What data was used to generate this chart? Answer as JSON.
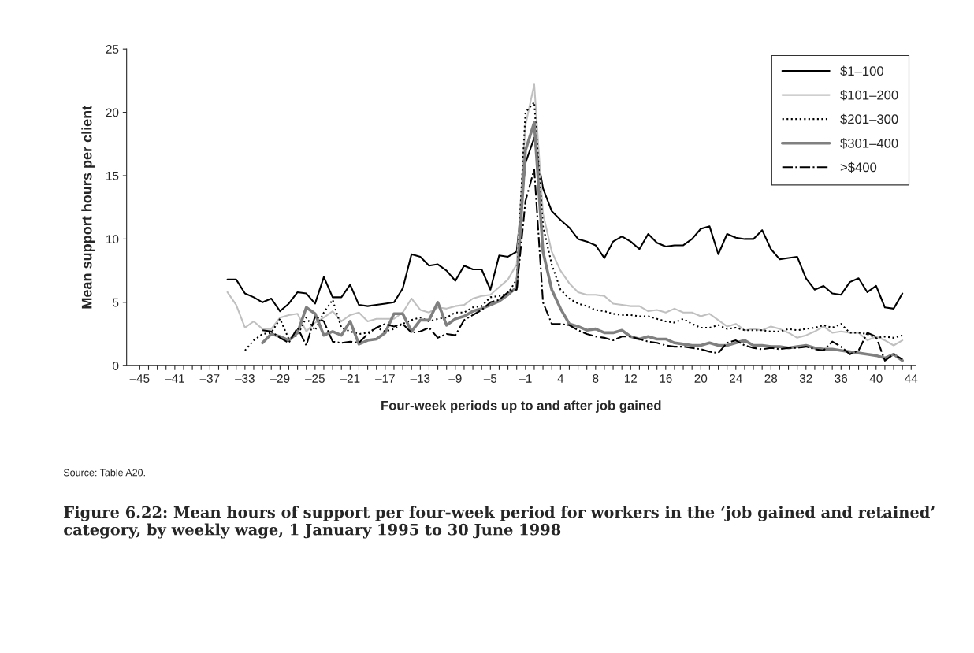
{
  "chart_data": {
    "type": "line",
    "title": "Figure 6.22: Mean hours of support per four-week period for workers in the ‘job gained and retained’ category, by weekly wage, 1 January 1995 to 30 June 1998",
    "xlabel": "Four-week periods up to and after job gained",
    "ylabel": "Mean support hours per client",
    "annotations": [
      "Source: Table A20."
    ],
    "categories": [
      "–45",
      null,
      null,
      null,
      "–41",
      null,
      null,
      null,
      "–37",
      null,
      null,
      null,
      "–33",
      null,
      null,
      null,
      "–29",
      null,
      null,
      null,
      "–25",
      null,
      null,
      null,
      "–21",
      null,
      null,
      null,
      "–17",
      null,
      null,
      null,
      "–13",
      null,
      null,
      null,
      "–9",
      null,
      null,
      null,
      "–5",
      null,
      null,
      null,
      "–1",
      null,
      null,
      null,
      "4",
      null,
      null,
      null,
      "8",
      null,
      null,
      null,
      "12",
      null,
      null,
      null,
      "16",
      null,
      null,
      null,
      "20",
      null,
      null,
      null,
      "24",
      null,
      null,
      null,
      "28",
      null,
      null,
      null,
      "32",
      null,
      null,
      null,
      "36",
      null,
      null,
      null,
      "40",
      null,
      null,
      null,
      "44"
    ],
    "ylim": [
      0,
      25
    ],
    "yticks": [
      0,
      5,
      10,
      15,
      20,
      25
    ],
    "grid": false,
    "legend": "top right",
    "series": [
      {
        "name": "$1–100",
        "color": "#000000",
        "line_style": "solid",
        "values": [
          null,
          null,
          null,
          null,
          null,
          null,
          null,
          null,
          null,
          null,
          6.8,
          6.8,
          5.7,
          5.4,
          5.0,
          5.3,
          4.3,
          4.9,
          5.8,
          5.7,
          4.9,
          7.0,
          5.4,
          5.4,
          6.4,
          4.8,
          4.7,
          4.8,
          4.9,
          5.0,
          6.1,
          8.8,
          8.6,
          7.9,
          8.0,
          7.5,
          6.7,
          7.9,
          7.6,
          7.6,
          6.0,
          8.7,
          8.6,
          9.0,
          16,
          18,
          14,
          12.2,
          11.5,
          10.9,
          10.0,
          9.8,
          9.5,
          8.5,
          9.8,
          10.2,
          9.8,
          9.2,
          10.4,
          9.7,
          9.4,
          9.5,
          9.5,
          10.0,
          10.8,
          11.0,
          8.8,
          10.4,
          10.1,
          10.0,
          10.0,
          10.7,
          9.2,
          8.4,
          8.5,
          8.6,
          6.9,
          6.0,
          6.3,
          5.7,
          5.6,
          6.6,
          6.9,
          5.8,
          6.3,
          4.6,
          4.5,
          5.7,
          null
        ]
      },
      {
        "name": "$101–200",
        "color": "#c0c0c0",
        "line_style": "solid",
        "values": [
          null,
          null,
          null,
          null,
          null,
          null,
          null,
          null,
          null,
          null,
          5.8,
          4.8,
          3.0,
          3.5,
          2.9,
          2.9,
          3.8,
          4.0,
          4.1,
          2.7,
          3.4,
          3.8,
          4.3,
          3.5,
          4.0,
          4.2,
          3.5,
          3.7,
          3.7,
          3.7,
          4.2,
          5.3,
          4.4,
          4.2,
          4.6,
          4.5,
          4.7,
          4.8,
          5.3,
          5.5,
          5.6,
          6.2,
          6.8,
          8.0,
          19,
          22.2,
          12,
          9.0,
          7.5,
          6.5,
          5.8,
          5.6,
          5.6,
          5.5,
          4.9,
          4.8,
          4.7,
          4.7,
          4.3,
          4.4,
          4.2,
          4.5,
          4.2,
          4.2,
          3.9,
          4.1,
          3.6,
          3.1,
          3.3,
          2.8,
          2.9,
          2.8,
          3.1,
          2.9,
          2.6,
          2.2,
          2.4,
          2.7,
          3.1,
          2.6,
          2.7,
          2.6,
          2.6,
          2.0,
          2.3,
          2.0,
          1.6,
          2.0,
          null
        ]
      },
      {
        "name": "$201–300",
        "color": "#000000",
        "line_style": "dotted",
        "values": [
          null,
          null,
          null,
          null,
          null,
          null,
          null,
          null,
          null,
          null,
          null,
          null,
          1.2,
          2.0,
          2.5,
          2.6,
          3.7,
          2.1,
          2.4,
          3.8,
          2.8,
          4.2,
          5.2,
          3.0,
          2.7,
          2.5,
          2.6,
          3.0,
          2.7,
          2.9,
          3.3,
          3.6,
          3.8,
          3.5,
          3.7,
          3.8,
          4.2,
          4.2,
          4.6,
          4.7,
          5.4,
          5.5,
          5.7,
          6.8,
          20,
          20.8,
          11,
          8.0,
          6.0,
          5.3,
          4.9,
          4.7,
          4.4,
          4.3,
          4.1,
          4.0,
          4.0,
          3.9,
          3.9,
          3.7,
          3.5,
          3.4,
          3.7,
          3.3,
          3.0,
          3.0,
          3.2,
          2.9,
          3.0,
          2.8,
          2.8,
          2.8,
          2.7,
          2.7,
          2.9,
          2.8,
          2.9,
          3.0,
          3.2,
          3.0,
          3.3,
          2.6,
          2.6,
          2.5,
          2.2,
          2.3,
          2.2,
          2.4,
          null
        ]
      },
      {
        "name": "$301–400",
        "color": "#808080",
        "line_style": "solid",
        "values": [
          null,
          null,
          null,
          null,
          null,
          null,
          null,
          null,
          null,
          null,
          null,
          null,
          null,
          null,
          1.8,
          2.5,
          2.3,
          2.0,
          2.6,
          4.6,
          4.1,
          2.4,
          2.7,
          2.4,
          3.5,
          1.7,
          2.0,
          2.1,
          2.6,
          4.1,
          4.1,
          2.7,
          3.6,
          3.6,
          5.0,
          3.2,
          3.7,
          3.9,
          4.3,
          4.5,
          4.8,
          5.1,
          5.6,
          6.2,
          17,
          19.2,
          9,
          6.0,
          4.5,
          3.3,
          3.1,
          2.8,
          2.9,
          2.6,
          2.6,
          2.8,
          2.3,
          2.1,
          2.3,
          2.1,
          2.1,
          1.8,
          1.7,
          1.6,
          1.6,
          1.8,
          1.6,
          1.6,
          1.8,
          2.0,
          1.6,
          1.6,
          1.5,
          1.5,
          1.4,
          1.5,
          1.6,
          1.4,
          1.3,
          1.3,
          1.2,
          1.1,
          1.0,
          0.9,
          0.8,
          0.6,
          0.9,
          0.4,
          null
        ]
      },
      {
        "name": ">$400",
        "color": "#000000",
        "line_style": "dashdot",
        "values": [
          null,
          null,
          null,
          null,
          null,
          null,
          null,
          null,
          null,
          null,
          null,
          null,
          null,
          null,
          2.8,
          2.7,
          2.2,
          1.8,
          3.0,
          1.6,
          3.9,
          3.5,
          1.9,
          1.8,
          1.9,
          1.8,
          2.5,
          3.0,
          3.3,
          3.1,
          3.3,
          2.6,
          2.7,
          3.0,
          2.2,
          2.5,
          2.4,
          3.6,
          4.0,
          4.4,
          5.0,
          5.2,
          5.8,
          6.0,
          13,
          15.5,
          5,
          3.3,
          3.3,
          3.2,
          2.8,
          2.5,
          2.3,
          2.2,
          2.0,
          2.3,
          2.3,
          2.1,
          1.9,
          1.8,
          1.6,
          1.5,
          1.5,
          1.4,
          1.3,
          1.1,
          1.0,
          1.8,
          2.0,
          1.6,
          1.4,
          1.3,
          1.4,
          1.3,
          1.4,
          1.4,
          1.5,
          1.3,
          1.2,
          1.9,
          1.5,
          0.9,
          1.2,
          2.6,
          2.3,
          0.4,
          0.9,
          0.5,
          null
        ]
      }
    ]
  }
}
